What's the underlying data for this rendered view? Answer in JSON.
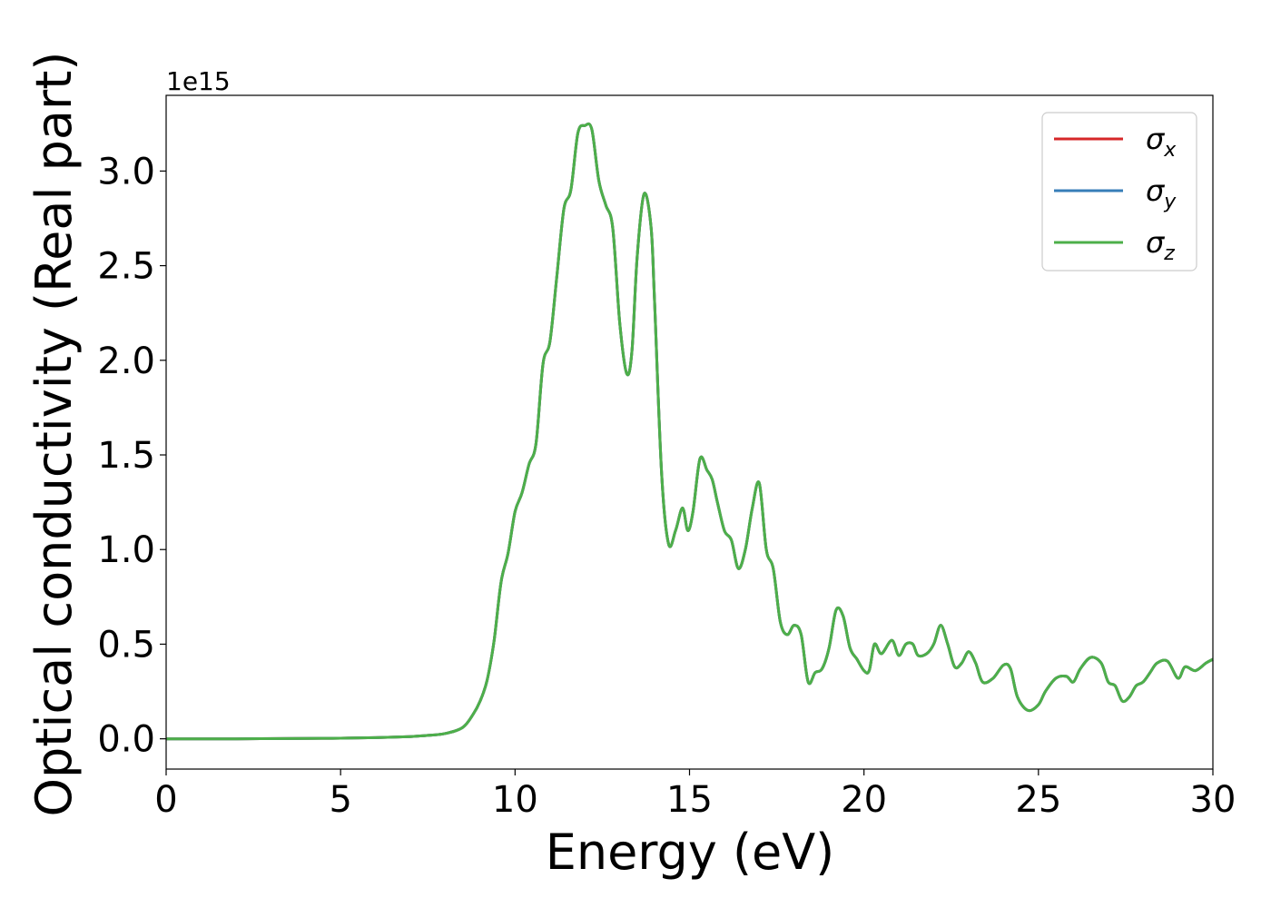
{
  "chart_data": {
    "type": "line",
    "title": "",
    "xlabel": "Energy (eV)",
    "ylabel": "Optical conductivity (Real part)",
    "y_offset_text": "1e15",
    "y_multiplier": 1000000000000000.0,
    "xlim": [
      0,
      30
    ],
    "ylim": [
      -0.16,
      3.4
    ],
    "x_ticks": [
      0,
      5,
      10,
      15,
      20,
      25,
      30
    ],
    "x_tick_labels": [
      "0",
      "5",
      "10",
      "15",
      "20",
      "25",
      "30"
    ],
    "y_ticks": [
      0.0,
      0.5,
      1.0,
      1.5,
      2.0,
      2.5,
      3.0
    ],
    "y_tick_labels": [
      "0.0",
      "0.5",
      "1.0",
      "1.5",
      "2.0",
      "2.5",
      "3.0"
    ],
    "grid": false,
    "legend_position": "top-right",
    "series": [
      {
        "name": "σx",
        "symbol": "σ",
        "subscript": "x",
        "color": "#d62728"
      },
      {
        "name": "σy",
        "symbol": "σ",
        "subscript": "y",
        "color": "#377eb8"
      },
      {
        "name": "σz",
        "symbol": "σ",
        "subscript": "z",
        "color": "#4daf4a"
      }
    ],
    "x": [
      0,
      2,
      4,
      5,
      6,
      7,
      7.5,
      8,
      8.5,
      8.8,
      9.0,
      9.2,
      9.4,
      9.6,
      9.8,
      10.0,
      10.2,
      10.4,
      10.6,
      10.8,
      11.0,
      11.2,
      11.4,
      11.6,
      11.8,
      12.0,
      12.2,
      12.4,
      12.6,
      12.8,
      13.0,
      13.2,
      13.35,
      13.5,
      13.7,
      13.9,
      14.0,
      14.2,
      14.4,
      14.6,
      14.8,
      14.95,
      15.1,
      15.3,
      15.5,
      15.65,
      15.8,
      16.0,
      16.2,
      16.4,
      16.6,
      16.8,
      17.0,
      17.2,
      17.4,
      17.6,
      17.8,
      18.0,
      18.2,
      18.4,
      18.6,
      18.8,
      19.0,
      19.2,
      19.4,
      19.6,
      19.8,
      20.0,
      20.15,
      20.3,
      20.5,
      20.8,
      21.0,
      21.2,
      21.4,
      21.55,
      21.8,
      22.0,
      22.2,
      22.4,
      22.6,
      22.8,
      23.0,
      23.2,
      23.4,
      23.7,
      24.0,
      24.2,
      24.4,
      24.7,
      25.0,
      25.2,
      25.5,
      25.8,
      26.0,
      26.2,
      26.5,
      26.8,
      27.0,
      27.2,
      27.4,
      27.6,
      27.8,
      28.0,
      28.2,
      28.4,
      28.7,
      29.0,
      29.2,
      29.5,
      29.8,
      30.0
    ],
    "y": [
      0,
      0,
      0.002,
      0.003,
      0.006,
      0.012,
      0.018,
      0.028,
      0.06,
      0.13,
      0.2,
      0.31,
      0.52,
      0.83,
      0.98,
      1.2,
      1.3,
      1.45,
      1.56,
      1.98,
      2.1,
      2.45,
      2.8,
      2.9,
      3.2,
      3.24,
      3.22,
      2.95,
      2.82,
      2.7,
      2.2,
      1.93,
      2.05,
      2.55,
      2.88,
      2.7,
      2.3,
      1.4,
      1.03,
      1.1,
      1.22,
      1.1,
      1.2,
      1.48,
      1.42,
      1.37,
      1.25,
      1.1,
      1.05,
      0.9,
      1.0,
      1.22,
      1.35,
      1.0,
      0.9,
      0.62,
      0.55,
      0.6,
      0.55,
      0.3,
      0.35,
      0.37,
      0.48,
      0.68,
      0.65,
      0.48,
      0.42,
      0.36,
      0.36,
      0.5,
      0.45,
      0.52,
      0.44,
      0.5,
      0.5,
      0.44,
      0.45,
      0.5,
      0.6,
      0.5,
      0.38,
      0.4,
      0.46,
      0.4,
      0.3,
      0.32,
      0.39,
      0.37,
      0.22,
      0.15,
      0.18,
      0.25,
      0.32,
      0.33,
      0.3,
      0.37,
      0.43,
      0.4,
      0.3,
      0.28,
      0.2,
      0.22,
      0.28,
      0.3,
      0.35,
      0.4,
      0.41,
      0.32,
      0.38,
      0.36,
      0.4,
      0.42
    ]
  }
}
